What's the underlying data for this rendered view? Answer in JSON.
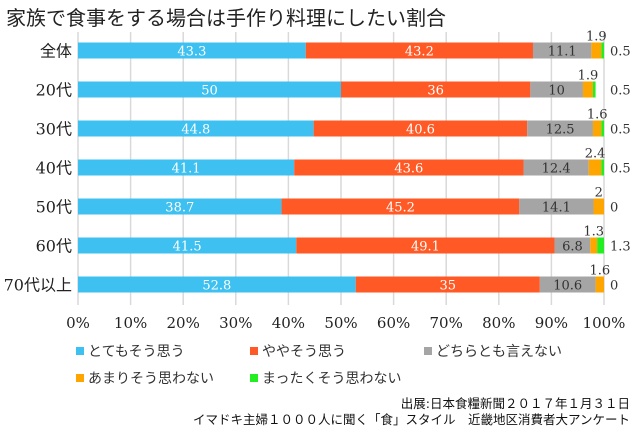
{
  "chart_data": {
    "type": "bar",
    "orientation": "horizontal",
    "stacked": true,
    "title": "家族で食事をする場合は手作り料理にしたい割合",
    "categories": [
      "全体",
      "20代",
      "30代",
      "40代",
      "50代",
      "60代",
      "70代以上"
    ],
    "series": [
      {
        "name": "とてもそう思う",
        "color": "#3ec0f0",
        "values": [
          43.3,
          50,
          44.8,
          41.1,
          38.7,
          41.5,
          52.8
        ]
      },
      {
        "name": "ややそう思う",
        "color": "#ff5a26",
        "values": [
          43.2,
          36,
          40.6,
          43.6,
          45.2,
          49.1,
          35
        ]
      },
      {
        "name": "どちらとも言えない",
        "color": "#a5a5a5",
        "values": [
          11.1,
          10,
          12.5,
          12.4,
          14.1,
          6.8,
          10.6
        ]
      },
      {
        "name": "あまりそう思わない",
        "color": "#ffa500",
        "values": [
          1.9,
          1.9,
          1.6,
          2.4,
          2,
          1.3,
          1.6
        ]
      },
      {
        "name": "まったくそう思わない",
        "color": "#22ee22",
        "values": [
          0.5,
          0.5,
          0.5,
          0.5,
          0,
          1.3,
          0
        ]
      }
    ],
    "xlim": [
      0,
      100
    ],
    "xticks": [
      "0%",
      "10%",
      "20%",
      "30%",
      "40%",
      "50%",
      "60%",
      "70%",
      "80%",
      "90%",
      "100%"
    ],
    "grid": true,
    "legend_position": "bottom"
  },
  "source": {
    "line1": "出展:日本食糧新聞２０１７年１月３１日",
    "line2": "イマドキ主婦１０００人に聞く「食」スタイル　近畿地区消費者大アンケート"
  }
}
